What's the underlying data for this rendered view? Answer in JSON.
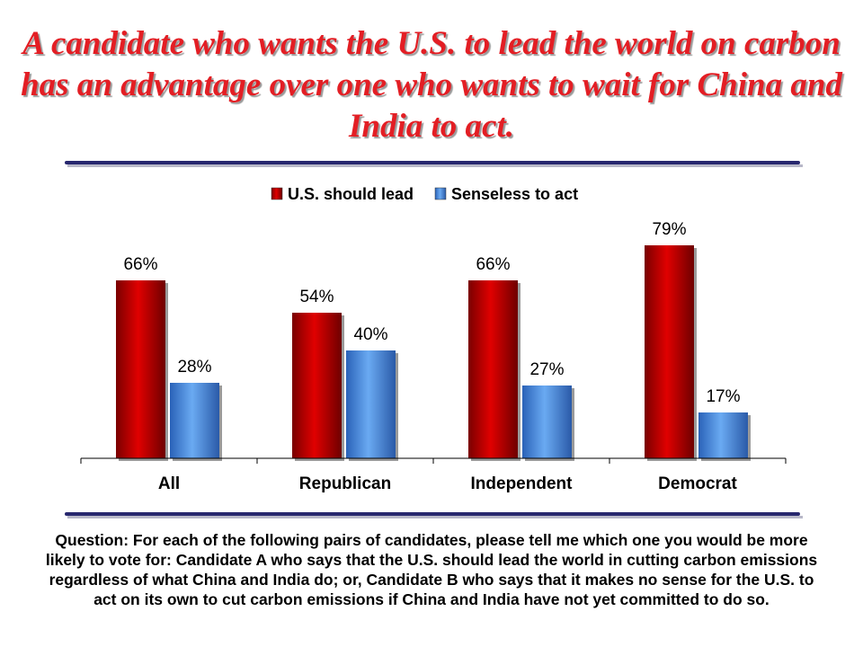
{
  "title": "A candidate who wants the U.S. to lead the world on carbon has an advantage over one who wants to wait for China and India to act.",
  "question": "Question: For each of the following pairs of candidates, please tell me which one you would be more likely to vote for: Candidate A who says that the U.S. should lead the world in cutting carbon emissions regardless of what China and India do; or, Candidate B who says that it makes no sense for the U.S. to act on its own to cut carbon emissions if China and India have not yet committed to do so.",
  "chart_data": {
    "type": "bar",
    "categories": [
      "All",
      "Republican",
      "Independent",
      "Democrat"
    ],
    "series": [
      {
        "name": "U.S. should lead",
        "values": [
          66,
          54,
          66,
          79
        ],
        "labels": [
          "66%",
          "54%",
          "66%",
          "79%"
        ],
        "color": "#cc0000"
      },
      {
        "name": "Senseless to act",
        "values": [
          28,
          40,
          27,
          17
        ],
        "labels": [
          "28%",
          "40%",
          "27%",
          "17%"
        ],
        "color": "#4a90e2"
      }
    ],
    "ylim": [
      0,
      100
    ],
    "grid": false,
    "legend": "top-center"
  }
}
